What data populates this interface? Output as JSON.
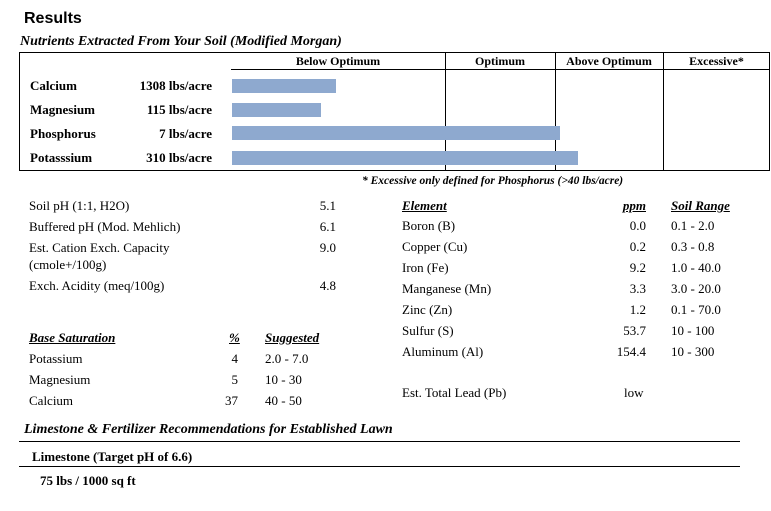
{
  "title": "Results",
  "nutrients": {
    "subtitle": "Nutrients Extracted From Your Soil (Modified Morgan)",
    "headers": [
      "Below Optimum",
      "Optimum",
      "Above Optimum",
      "Excessive*"
    ],
    "rows": [
      {
        "name": "Calcium",
        "value": "1308 lbs/acre",
        "level": 0.49
      },
      {
        "name": "Magnesium",
        "value": "115 lbs/acre",
        "level": 0.42
      },
      {
        "name": "Phosphorus",
        "value": "7 lbs/acre",
        "level": 2.05
      },
      {
        "name": "Potasssium",
        "value": "310 lbs/acre",
        "level": 2.21
      }
    ],
    "note": "* Excessive only defined for Phosphorus (>40 lbs/acre)"
  },
  "bar_color": "#8EA9CF",
  "soil": [
    {
      "label": "Soil pH (1:1, H2O)",
      "value": "5.1"
    },
    {
      "label": "Buffered pH (Mod. Mehlich)",
      "value": "6.1"
    },
    {
      "label": "Est. Cation Exch. Capacity",
      "label2": "(cmole+/100g)",
      "value": "9.0"
    },
    {
      "label": "Exch. Acidity (meq/100g)",
      "value": "4.8"
    }
  ],
  "base_saturation": {
    "header": "Base Saturation",
    "pct_header": "%",
    "suggested_header": "Suggested",
    "rows": [
      {
        "name": "Potassium",
        "pct": "4",
        "suggested": "2.0 - 7.0"
      },
      {
        "name": "Magnesium",
        "pct": "5",
        "suggested": "10 - 30"
      },
      {
        "name": "Calcium",
        "pct": "37",
        "suggested": "40 - 50"
      }
    ]
  },
  "elements": {
    "header": "Element",
    "ppm_header": "ppm",
    "range_header": "Soil Range",
    "rows": [
      {
        "name": "Boron (B)",
        "ppm": "0.0",
        "range": "0.1 - 2.0"
      },
      {
        "name": "Copper (Cu)",
        "ppm": "0.2",
        "range": "0.3 - 0.8"
      },
      {
        "name": "Iron (Fe)",
        "ppm": "9.2",
        "range": "1.0 - 40.0"
      },
      {
        "name": "Manganese (Mn)",
        "ppm": "3.3",
        "range": "3.0 - 20.0"
      },
      {
        "name": "Zinc (Zn)",
        "ppm": "1.2",
        "range": "0.1 - 70.0"
      },
      {
        "name": "Sulfur (S)",
        "ppm": "53.7",
        "range": "10 - 100"
      },
      {
        "name": "Aluminum (Al)",
        "ppm": "154.4",
        "range": "10 - 300"
      }
    ],
    "lead_label": "Est. Total Lead (Pb)",
    "lead_value": "low"
  },
  "recommendations": {
    "title": "Limestone & Fertilizer Recommendations for Established Lawn",
    "limestone_header": "Limestone  (Target pH of 6.6)",
    "limestone_value": "75 lbs / 1000 sq ft"
  }
}
